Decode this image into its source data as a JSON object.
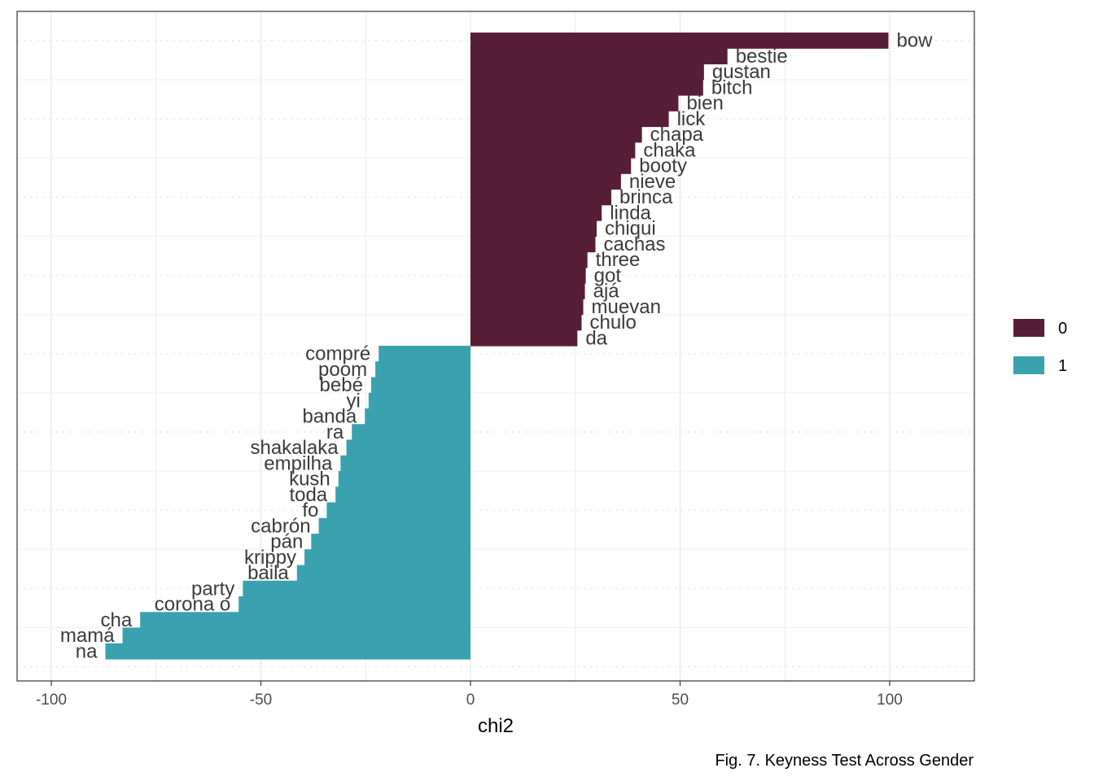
{
  "chart_data": {
    "type": "bar",
    "orientation": "horizontal",
    "xlabel": "chi2",
    "ylabel": "",
    "xlim": [
      -107,
      120
    ],
    "xticks": [
      -100,
      -50,
      0,
      50,
      100
    ],
    "xtick_labels": [
      "-100",
      "-50",
      "0",
      "50",
      "100"
    ],
    "grid": true,
    "legend_position": "right",
    "caption": "Fig. 7. Keyness Test Across Gender",
    "groups": [
      {
        "name": "0",
        "color": "#561f37"
      },
      {
        "name": "1",
        "color": "#3aa2ae"
      }
    ],
    "bars": [
      {
        "word": "bow",
        "value": 99.7,
        "group": "0"
      },
      {
        "word": "bestie",
        "value": 61.3,
        "group": "0"
      },
      {
        "word": "gustan",
        "value": 55.7,
        "group": "0"
      },
      {
        "word": "bitch",
        "value": 55.5,
        "group": "0"
      },
      {
        "word": "bien",
        "value": 49.6,
        "group": "0"
      },
      {
        "word": "lick",
        "value": 47.3,
        "group": "0"
      },
      {
        "word": "chapa",
        "value": 40.9,
        "group": "0"
      },
      {
        "word": "chaka",
        "value": 39.3,
        "group": "0"
      },
      {
        "word": "booty",
        "value": 38.3,
        "group": "0"
      },
      {
        "word": "nieve",
        "value": 35.9,
        "group": "0"
      },
      {
        "word": "brinca",
        "value": 33.6,
        "group": "0"
      },
      {
        "word": "linda",
        "value": 31.3,
        "group": "0"
      },
      {
        "word": "chiqui",
        "value": 30.1,
        "group": "0"
      },
      {
        "word": "cachas",
        "value": 29.8,
        "group": "0"
      },
      {
        "word": "three",
        "value": 27.9,
        "group": "0"
      },
      {
        "word": "got",
        "value": 27.5,
        "group": "0"
      },
      {
        "word": "ajá",
        "value": 27.3,
        "group": "0"
      },
      {
        "word": "muevan",
        "value": 26.9,
        "group": "0"
      },
      {
        "word": "chulo",
        "value": 26.5,
        "group": "0"
      },
      {
        "word": "da",
        "value": 25.5,
        "group": "0"
      },
      {
        "word": "compré",
        "value": -21.9,
        "group": "1"
      },
      {
        "word": "poom",
        "value": -22.7,
        "group": "1"
      },
      {
        "word": "bebé",
        "value": -23.7,
        "group": "1"
      },
      {
        "word": "yi",
        "value": -24.3,
        "group": "1"
      },
      {
        "word": "banda",
        "value": -25.2,
        "group": "1"
      },
      {
        "word": "ra",
        "value": -28.3,
        "group": "1"
      },
      {
        "word": "shakalaka",
        "value": -29.6,
        "group": "1"
      },
      {
        "word": "empilha",
        "value": -31.0,
        "group": "1"
      },
      {
        "word": "kush",
        "value": -31.5,
        "group": "1"
      },
      {
        "word": "toda",
        "value": -32.2,
        "group": "1"
      },
      {
        "word": "fo",
        "value": -34.3,
        "group": "1"
      },
      {
        "word": "cabrón",
        "value": -36.2,
        "group": "1"
      },
      {
        "word": "pán",
        "value": -38.0,
        "group": "1"
      },
      {
        "word": "krippy",
        "value": -39.6,
        "group": "1"
      },
      {
        "word": "baila",
        "value": -41.4,
        "group": "1"
      },
      {
        "word": "party",
        "value": -54.3,
        "group": "1"
      },
      {
        "word": "corona o",
        "value": -55.3,
        "group": "1"
      },
      {
        "word": "cha",
        "value": -78.8,
        "group": "1"
      },
      {
        "word": "mamá",
        "value": -83.0,
        "group": "1"
      },
      {
        "word": "na",
        "value": -87.1,
        "group": "1"
      }
    ]
  }
}
